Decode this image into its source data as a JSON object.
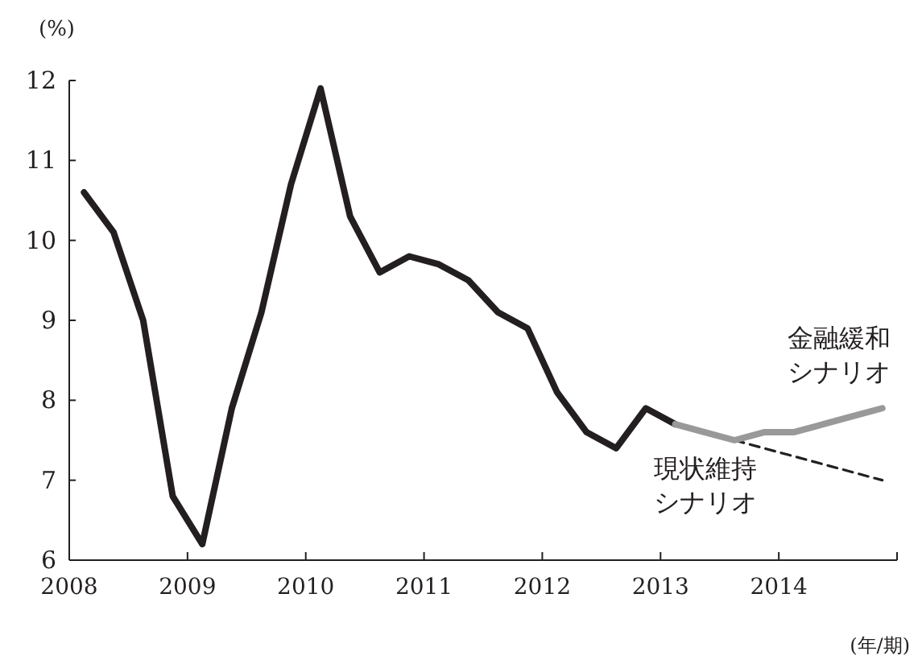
{
  "chart_data": {
    "type": "line",
    "ylabel": "(%)",
    "xlabel": "(年/期)",
    "x": [
      2008.125,
      2008.375,
      2008.625,
      2008.875,
      2009.125,
      2009.375,
      2009.625,
      2009.875,
      2010.125,
      2010.375,
      2010.625,
      2010.875,
      2011.125,
      2011.375,
      2011.625,
      2011.875,
      2012.125,
      2012.375,
      2012.625,
      2012.875,
      2013.125,
      2013.375,
      2013.625,
      2013.875,
      2014.125,
      2014.375,
      2014.625,
      2014.875
    ],
    "series": [
      {
        "color": "#231f20",
        "line_style": "solid",
        "values": [
          10.6,
          10.1,
          9.0,
          6.8,
          6.2,
          7.9,
          9.1,
          10.7,
          11.9,
          10.3,
          9.6,
          9.8,
          9.7,
          9.5,
          9.1,
          8.9,
          8.1,
          7.6,
          7.4,
          7.9,
          7.7,
          null,
          null,
          null,
          null,
          null,
          null,
          null
        ]
      },
      {
        "name": "現状維持シナリオ",
        "color": "#231f20",
        "line_style": "dashed",
        "values": [
          null,
          null,
          null,
          null,
          null,
          null,
          null,
          null,
          null,
          null,
          null,
          null,
          null,
          null,
          null,
          null,
          null,
          null,
          null,
          null,
          null,
          null,
          7.5,
          7.4,
          7.3,
          7.2,
          7.1,
          7.0
        ]
      },
      {
        "name": "金融緩和シナリオ",
        "color": "#999999",
        "line_style": "solid",
        "values": [
          null,
          null,
          null,
          null,
          null,
          null,
          null,
          null,
          null,
          null,
          null,
          null,
          null,
          null,
          null,
          null,
          null,
          null,
          null,
          null,
          7.7,
          7.6,
          7.5,
          7.6,
          7.6,
          7.7,
          7.8,
          7.9
        ]
      }
    ],
    "xlim": [
      2008,
      2015
    ],
    "xticks": [
      2008,
      2009,
      2010,
      2011,
      2012,
      2013,
      2014,
      {
        "value": 2015,
        "label": null
      }
    ],
    "ylim": [
      6,
      12
    ],
    "yticks": [
      6,
      7,
      8,
      9,
      10,
      11,
      12
    ]
  }
}
